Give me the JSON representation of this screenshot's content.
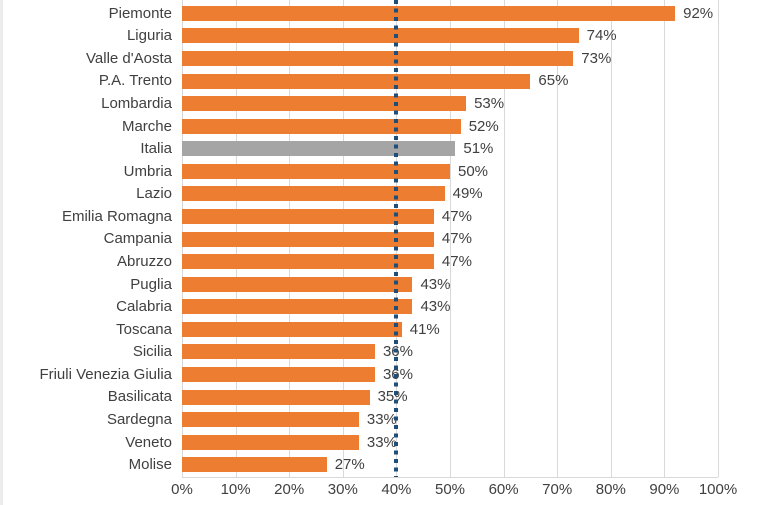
{
  "chart_data": {
    "type": "bar",
    "orientation": "horizontal",
    "title": "",
    "xlabel": "",
    "ylabel": "",
    "categories": [
      "Piemonte",
      "Liguria",
      "Valle d'Aosta",
      "P.A. Trento",
      "Lombardia",
      "Marche",
      "Italia",
      "Umbria",
      "Lazio",
      "Emilia Romagna",
      "Campania",
      "Abruzzo",
      "Puglia",
      "Calabria",
      "Toscana",
      "Sicilia",
      "Friuli Venezia Giulia",
      "Basilicata",
      "Sardegna",
      "Veneto",
      "Molise"
    ],
    "values": [
      92,
      74,
      73,
      65,
      53,
      52,
      51,
      50,
      49,
      47,
      47,
      47,
      43,
      43,
      41,
      36,
      36,
      35,
      33,
      33,
      27
    ],
    "data_labels": [
      "92%",
      "74%",
      "73%",
      "65%",
      "53%",
      "52%",
      "51%",
      "50%",
      "49%",
      "47%",
      "47%",
      "47%",
      "43%",
      "43%",
      "41%",
      "36%",
      "36%",
      "35%",
      "33%",
      "33%",
      "27%"
    ],
    "highlight": {
      "category": "Italia",
      "index": 6,
      "color": "#a5a5a5"
    },
    "bar_color": "#ed7d31",
    "xlim": [
      0,
      100
    ],
    "x_tick_values": [
      0,
      10,
      20,
      30,
      40,
      50,
      60,
      70,
      80,
      90,
      100
    ],
    "x_tick_labels": [
      "0%",
      "10%",
      "20%",
      "30%",
      "40%",
      "50%",
      "60%",
      "70%",
      "80%",
      "90%",
      "100%"
    ],
    "reference_line": {
      "x": 40,
      "color": "#1f4e79",
      "style": "dotted"
    },
    "grid": "vertical",
    "grid_color": "#d9d9d9",
    "text_color": "#404040",
    "legend": "none"
  }
}
